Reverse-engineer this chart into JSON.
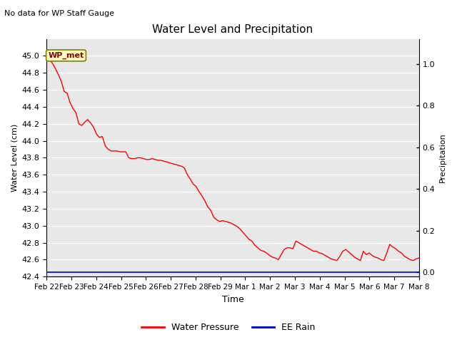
{
  "title": "Water Level and Precipitation",
  "subtitle": "No data for WP Staff Gauge",
  "xlabel": "Time",
  "ylabel_left": "Water Level (cm)",
  "ylabel_right": "Precipitation",
  "annotation_label": "WP_met",
  "ylim_left": [
    42.4,
    45.2
  ],
  "ylim_right": [
    -0.02,
    1.12
  ],
  "yticks_left": [
    42.4,
    42.6,
    42.8,
    43.0,
    43.2,
    43.4,
    43.6,
    43.8,
    44.0,
    44.2,
    44.4,
    44.6,
    44.8,
    45.0
  ],
  "yticks_right": [
    0.0,
    0.2,
    0.4,
    0.6,
    0.8,
    1.0
  ],
  "xtick_labels": [
    "Feb 22",
    "Feb 23",
    "Feb 24",
    "Feb 25",
    "Feb 26",
    "Feb 27",
    "Feb 28",
    "Feb 29",
    "Mar 1",
    "Mar 2",
    "Mar 3",
    "Mar 4",
    "Mar 5",
    "Mar 6",
    "Mar 7",
    "Mar 8"
  ],
  "line_color": "#FF0000",
  "rain_color": "#0000CC",
  "legend_water_pressure": "Water Pressure",
  "legend_ee_rain": "EE Rain",
  "water_level": [
    45.0,
    44.96,
    44.91,
    44.85,
    44.78,
    44.7,
    44.58,
    44.56,
    44.45,
    44.38,
    44.33,
    44.2,
    44.18,
    44.22,
    44.25,
    44.21,
    44.16,
    44.08,
    44.04,
    44.05,
    43.94,
    43.9,
    43.88,
    43.88,
    43.88,
    43.87,
    43.87,
    43.87,
    43.8,
    43.79,
    43.79,
    43.8,
    43.8,
    43.79,
    43.78,
    43.78,
    43.79,
    43.78,
    43.77,
    43.77,
    43.76,
    43.75,
    43.74,
    43.73,
    43.72,
    43.71,
    43.7,
    43.68,
    43.6,
    43.55,
    43.49,
    43.46,
    43.4,
    43.35,
    43.29,
    43.22,
    43.18,
    43.1,
    43.07,
    43.05,
    43.06,
    43.05,
    43.04,
    43.03,
    43.01,
    42.99,
    42.96,
    42.92,
    42.88,
    42.84,
    42.82,
    42.77,
    42.74,
    42.71,
    42.7,
    42.68,
    42.65,
    42.63,
    42.62,
    42.6,
    42.66,
    42.72,
    42.74,
    42.74,
    42.73,
    42.82,
    42.8,
    42.78,
    42.76,
    42.74,
    42.72,
    42.7,
    42.7,
    42.68,
    42.67,
    42.65,
    42.63,
    42.61,
    42.6,
    42.59,
    42.64,
    42.7,
    42.72,
    42.69,
    42.66,
    42.63,
    42.61,
    42.59,
    42.7,
    42.66,
    42.68,
    42.65,
    42.63,
    42.62,
    42.6,
    42.59,
    42.68,
    42.78,
    42.75,
    42.73,
    42.7,
    42.68,
    42.64,
    42.62,
    42.6,
    42.59,
    42.61,
    42.62
  ]
}
